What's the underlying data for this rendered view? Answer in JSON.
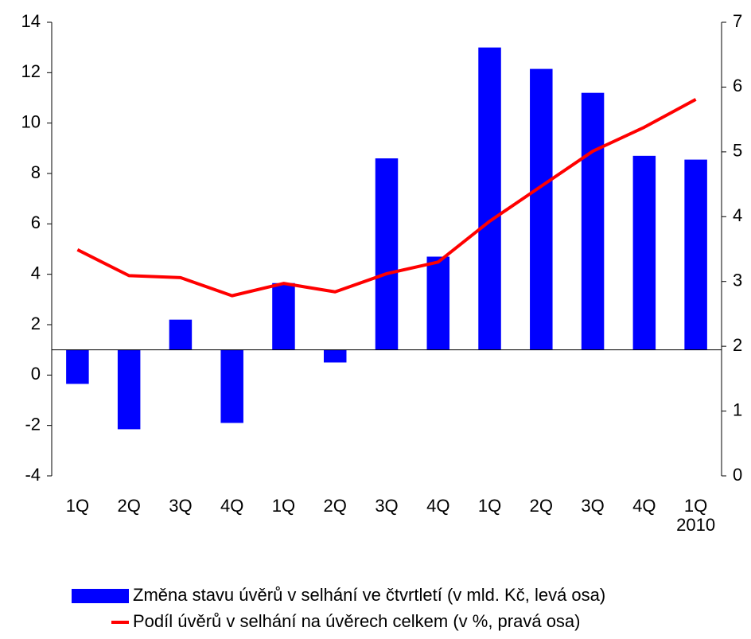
{
  "chart_data": {
    "type": "bar_line",
    "categories": [
      "1Q",
      "2Q",
      "3Q",
      "4Q",
      "1Q",
      "2Q",
      "3Q",
      "4Q",
      "1Q",
      "2Q",
      "3Q",
      "4Q",
      "1Q"
    ],
    "annotation": "2010",
    "series": [
      {
        "name": "Změna stavu úvěrů v selhání ve čtvrtletí (v mld. Kč, levá osa)",
        "type": "bar",
        "color": "#0000ff",
        "axis": "y",
        "values": [
          -0.35,
          -2.15,
          2.2,
          -1.9,
          3.65,
          0.5,
          8.6,
          4.7,
          13.0,
          12.15,
          11.2,
          8.7,
          8.55
        ]
      },
      {
        "name": "Podíl úvěrů v selhání na úvěrech celkem (v %, pravá osa)",
        "type": "line",
        "color": "#ff0000",
        "axis": "y2",
        "values": [
          3.49,
          3.09,
          3.06,
          2.78,
          2.97,
          2.84,
          3.12,
          3.3,
          3.93,
          4.47,
          5.01,
          5.38,
          5.81
        ]
      }
    ],
    "ylim": [
      -4,
      14
    ],
    "yticks": [
      -4,
      -2,
      0,
      2,
      4,
      6,
      8,
      10,
      12,
      14
    ],
    "y2lim": [
      0,
      7
    ],
    "y2ticks": [
      0,
      1,
      2,
      3,
      4,
      5,
      6,
      7
    ],
    "x_axis_crosses": 1,
    "legend": "bottom",
    "grid": false
  }
}
